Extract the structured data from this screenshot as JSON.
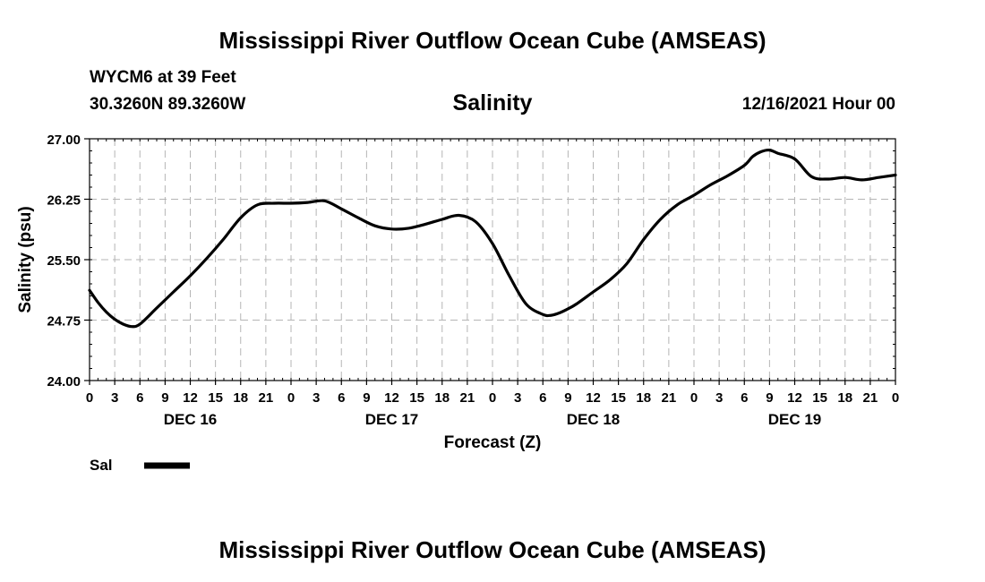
{
  "header": {
    "title": "Mississippi River Outflow Ocean Cube (AMSEAS)",
    "station": "WYCM6 at 39 Feet",
    "coords": "30.3260N  89.3260W",
    "plot_title": "Salinity",
    "datetime": "12/16/2021 Hour 00"
  },
  "footer": {
    "title": "Mississippi River Outflow Ocean Cube (AMSEAS)"
  },
  "chart_data": {
    "type": "line",
    "title": "Salinity",
    "xlabel": "Forecast (Z)",
    "ylabel": "Salinity (psu)",
    "xlim": [
      0,
      96
    ],
    "ylim": [
      24.0,
      27.0
    ],
    "yticks": [
      "24.00",
      "24.75",
      "25.50",
      "26.25",
      "27.00"
    ],
    "ytick_values": [
      24.0,
      24.75,
      25.5,
      26.25,
      27.0
    ],
    "xticks": [
      "0",
      "3",
      "6",
      "9",
      "12",
      "15",
      "18",
      "21",
      "0",
      "3",
      "6",
      "9",
      "12",
      "15",
      "18",
      "21",
      "0",
      "3",
      "6",
      "9",
      "12",
      "15",
      "18",
      "21",
      "0",
      "3",
      "6",
      "9",
      "12",
      "15",
      "18",
      "21",
      "0"
    ],
    "day_labels": [
      {
        "label": "DEC 16",
        "x": 12
      },
      {
        "label": "DEC 17",
        "x": 36
      },
      {
        "label": "DEC 18",
        "x": 60
      },
      {
        "label": "DEC 19",
        "x": 84
      }
    ],
    "grid": true,
    "legend": "bottom-left",
    "series": [
      {
        "name": "Sal",
        "color": "#000000",
        "x": [
          0,
          1,
          2,
          3,
          4,
          5,
          6,
          8,
          10,
          12,
          14,
          16,
          18,
          20,
          22,
          24,
          26,
          28,
          30,
          32,
          34,
          36,
          38,
          40,
          42,
          44,
          46,
          48,
          50,
          52,
          54,
          55,
          56,
          57,
          58,
          60,
          62,
          64,
          66,
          68,
          70,
          72,
          74,
          76,
          78,
          79,
          80,
          81,
          82,
          84,
          86,
          88,
          90,
          92,
          94,
          96
        ],
        "values": [
          25.12,
          24.97,
          24.85,
          24.76,
          24.7,
          24.67,
          24.7,
          24.9,
          25.1,
          25.3,
          25.52,
          25.76,
          26.02,
          26.18,
          26.2,
          26.2,
          26.21,
          26.23,
          26.13,
          26.02,
          25.92,
          25.88,
          25.89,
          25.94,
          26.0,
          26.05,
          25.97,
          25.7,
          25.3,
          24.95,
          24.82,
          24.81,
          24.84,
          24.89,
          24.95,
          25.1,
          25.25,
          25.45,
          25.75,
          26.0,
          26.18,
          26.3,
          26.43,
          26.54,
          26.67,
          26.78,
          26.84,
          26.86,
          26.82,
          26.75,
          26.53,
          26.5,
          26.52,
          26.49,
          26.52,
          26.55
        ]
      }
    ]
  }
}
